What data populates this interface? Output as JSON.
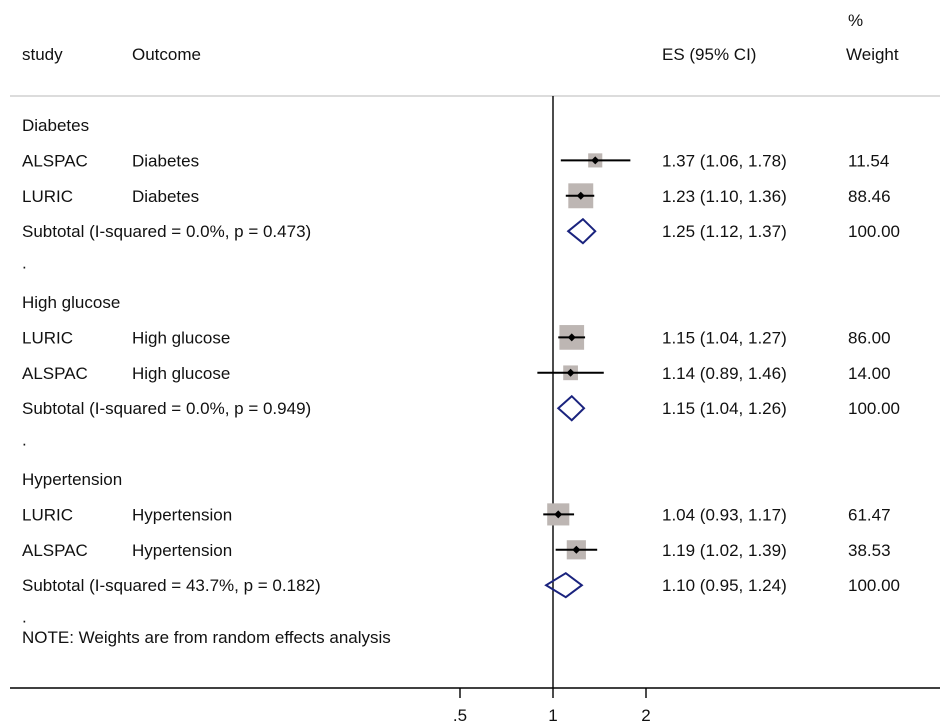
{
  "chart_data": {
    "type": "forest",
    "headers": {
      "study": "study",
      "outcome": "Outcome",
      "es": "ES (95% CI)",
      "weight_top": "%",
      "weight_bottom": "Weight"
    },
    "scale": "log",
    "xlim": [
      0.5,
      2.6
    ],
    "null_line": 1,
    "x_ticks": [
      {
        "value": 0.5,
        "label": ".5"
      },
      {
        "value": 1,
        "label": "1"
      },
      {
        "value": 2,
        "label": "2"
      }
    ],
    "rows": [
      {
        "kind": "group",
        "label": "Diabetes"
      },
      {
        "kind": "study",
        "study": "ALSPAC",
        "outcome": "Diabetes",
        "es": 1.37,
        "lo": 1.06,
        "hi": 1.78,
        "es_text": "1.37 (1.06, 1.78)",
        "weight": "11.54"
      },
      {
        "kind": "study",
        "study": "LURIC",
        "outcome": "Diabetes",
        "es": 1.23,
        "lo": 1.1,
        "hi": 1.36,
        "es_text": "1.23 (1.10, 1.36)",
        "weight": "88.46"
      },
      {
        "kind": "subtotal",
        "label": "Subtotal  (I-squared = 0.0%, p = 0.473)",
        "es": 1.25,
        "lo": 1.12,
        "hi": 1.37,
        "es_text": "1.25 (1.12, 1.37)",
        "weight": "100.00"
      },
      {
        "kind": "dot",
        "label": "."
      },
      {
        "kind": "group",
        "label": "High glucose"
      },
      {
        "kind": "study",
        "study": "LURIC",
        "outcome": "High glucose",
        "es": 1.15,
        "lo": 1.04,
        "hi": 1.27,
        "es_text": "1.15 (1.04, 1.27)",
        "weight": "86.00"
      },
      {
        "kind": "study",
        "study": "ALSPAC",
        "outcome": "High glucose",
        "es": 1.14,
        "lo": 0.89,
        "hi": 1.46,
        "es_text": "1.14 (0.89, 1.46)",
        "weight": "14.00"
      },
      {
        "kind": "subtotal",
        "label": "Subtotal  (I-squared = 0.0%, p = 0.949)",
        "es": 1.15,
        "lo": 1.04,
        "hi": 1.26,
        "es_text": "1.15 (1.04, 1.26)",
        "weight": "100.00"
      },
      {
        "kind": "dot",
        "label": "."
      },
      {
        "kind": "group",
        "label": "Hypertension"
      },
      {
        "kind": "study",
        "study": "LURIC",
        "outcome": "Hypertension",
        "es": 1.04,
        "lo": 0.93,
        "hi": 1.17,
        "es_text": "1.04 (0.93, 1.17)",
        "weight": "61.47"
      },
      {
        "kind": "study",
        "study": "ALSPAC",
        "outcome": "Hypertension",
        "es": 1.19,
        "lo": 1.02,
        "hi": 1.39,
        "es_text": "1.19 (1.02, 1.39)",
        "weight": "38.53"
      },
      {
        "kind": "subtotal",
        "label": "Subtotal  (I-squared = 43.7%, p = 0.182)",
        "es": 1.1,
        "lo": 0.95,
        "hi": 1.24,
        "es_text": "1.10 (0.95, 1.24)",
        "weight": "100.00"
      },
      {
        "kind": "dot",
        "label": "."
      }
    ],
    "note": "NOTE: Weights are from random effects analysis",
    "colors": {
      "weight_box": "#bdb6b3",
      "diamond": "#1a237e",
      "line": "#000000",
      "rule": "#c8c8c8"
    }
  }
}
